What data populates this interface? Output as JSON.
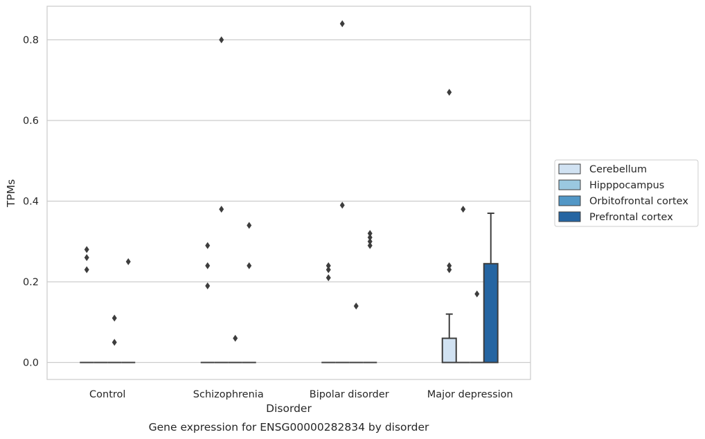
{
  "chart_data": {
    "type": "box",
    "title": "",
    "caption": "Gene expression for ENSG00000282834 by disorder",
    "xlabel": "Disorder",
    "ylabel": "TPMs",
    "ylim": [
      -0.04,
      0.885
    ],
    "yticks": [
      0.0,
      0.2,
      0.4,
      0.6,
      0.8
    ],
    "ytick_labels": [
      "0.0",
      "0.2",
      "0.4",
      "0.6",
      "0.8"
    ],
    "grid": "horizontal",
    "legend_position": "right",
    "categories": [
      "Control",
      "Schizophrenia",
      "Bipolar disorder",
      "Major depression"
    ],
    "series": [
      {
        "name": "Cerebellum",
        "color": "#d1e2f2",
        "boxes": [
          {
            "q1": 0,
            "median": 0,
            "q3": 0,
            "whisker_low": 0,
            "whisker_high": 0,
            "outliers": [
              0.28,
              0.26,
              0.23
            ]
          },
          {
            "q1": 0,
            "median": 0,
            "q3": 0,
            "whisker_low": 0,
            "whisker_high": 0,
            "outliers": [
              0.29,
              0.24,
              0.19
            ]
          },
          {
            "q1": 0,
            "median": 0,
            "q3": 0,
            "whisker_low": 0,
            "whisker_high": 0,
            "outliers": [
              0.24,
              0.23,
              0.21
            ]
          },
          {
            "q1": 0,
            "median": 0,
            "q3": 0.06,
            "whisker_low": 0,
            "whisker_high": 0.12,
            "outliers": [
              0.67,
              0.24,
              0.23
            ]
          }
        ]
      },
      {
        "name": "Hipppocampus",
        "color": "#9ac8e0",
        "boxes": [
          {
            "q1": 0,
            "median": 0,
            "q3": 0,
            "whisker_low": 0,
            "whisker_high": 0,
            "outliers": []
          },
          {
            "q1": 0,
            "median": 0,
            "q3": 0,
            "whisker_low": 0,
            "whisker_high": 0,
            "outliers": [
              0.8,
              0.38
            ]
          },
          {
            "q1": 0,
            "median": 0,
            "q3": 0,
            "whisker_low": 0,
            "whisker_high": 0,
            "outliers": [
              0.84,
              0.39
            ]
          },
          {
            "q1": 0,
            "median": 0,
            "q3": 0,
            "whisker_low": 0,
            "whisker_high": 0,
            "outliers": [
              0.38
            ]
          }
        ]
      },
      {
        "name": "Orbitofrontal cortex",
        "color": "#5297c6",
        "boxes": [
          {
            "q1": 0,
            "median": 0,
            "q3": 0,
            "whisker_low": 0,
            "whisker_high": 0,
            "outliers": [
              0.11,
              0.05
            ]
          },
          {
            "q1": 0,
            "median": 0,
            "q3": 0,
            "whisker_low": 0,
            "whisker_high": 0,
            "outliers": [
              0.06
            ]
          },
          {
            "q1": 0,
            "median": 0,
            "q3": 0,
            "whisker_low": 0,
            "whisker_high": 0,
            "outliers": [
              0.14
            ]
          },
          {
            "q1": 0,
            "median": 0,
            "q3": 0,
            "whisker_low": 0,
            "whisker_high": 0,
            "outliers": [
              0.17
            ]
          }
        ]
      },
      {
        "name": "Prefrontal cortex",
        "color": "#2565a2",
        "boxes": [
          {
            "q1": 0,
            "median": 0,
            "q3": 0,
            "whisker_low": 0,
            "whisker_high": 0,
            "outliers": [
              0.25
            ]
          },
          {
            "q1": 0,
            "median": 0,
            "q3": 0,
            "whisker_low": 0,
            "whisker_high": 0,
            "outliers": [
              0.34,
              0.24
            ]
          },
          {
            "q1": 0,
            "median": 0,
            "q3": 0,
            "whisker_low": 0,
            "whisker_high": 0,
            "outliers": [
              0.32,
              0.31,
              0.3,
              0.29
            ]
          },
          {
            "q1": 0,
            "median": 0,
            "q3": 0.245,
            "whisker_low": 0,
            "whisker_high": 0.37,
            "outliers": []
          }
        ]
      }
    ]
  }
}
